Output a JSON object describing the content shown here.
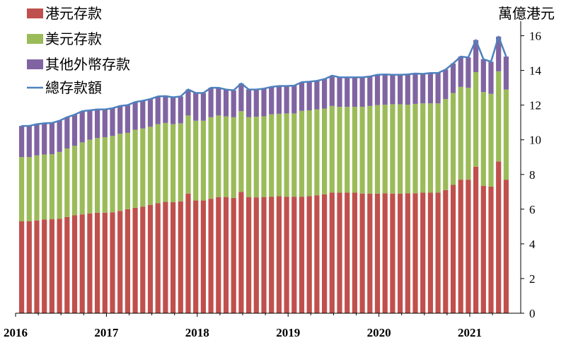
{
  "chart_data": {
    "type": "bar",
    "stacked": true,
    "y_unit_label": "萬億港元",
    "ylim": [
      0,
      17
    ],
    "yticks": [
      0,
      2,
      4,
      6,
      8,
      10,
      12,
      14,
      16
    ],
    "x_tick_labels": [
      "2016",
      "2017",
      "2018",
      "2019",
      "2020",
      "2021"
    ],
    "x_start": "2016-01",
    "x_end": "2021-03",
    "legend_position": "top-left",
    "grid": false,
    "colors": {
      "hkd": "#c0504d",
      "usd": "#9bbb59",
      "other": "#8064a2",
      "total": "#4f81bd"
    },
    "series": [
      {
        "key": "hkd",
        "name": "港元存款",
        "type": "bar",
        "values": [
          5.3,
          5.3,
          5.35,
          5.4,
          5.42,
          5.45,
          5.55,
          5.65,
          5.7,
          5.75,
          5.8,
          5.8,
          5.82,
          5.9,
          6.0,
          6.08,
          6.15,
          6.25,
          6.35,
          6.42,
          6.4,
          6.45,
          6.9,
          6.5,
          6.5,
          6.6,
          6.7,
          6.7,
          6.65,
          7.0,
          6.7,
          6.68,
          6.7,
          6.72,
          6.75,
          6.72,
          6.72,
          6.72,
          6.75,
          6.8,
          6.85,
          6.95,
          6.95,
          6.95,
          6.95,
          6.9,
          6.9,
          6.9,
          6.92,
          6.9,
          6.9,
          6.92,
          6.92,
          6.95,
          6.95,
          6.95,
          7.1,
          7.4,
          7.7,
          7.7,
          8.45,
          7.35,
          7.3,
          8.75,
          7.7
        ]
      },
      {
        "key": "usd",
        "name": "美元存款",
        "type": "bar",
        "values": [
          3.7,
          3.7,
          3.75,
          3.75,
          3.75,
          3.85,
          3.95,
          4.0,
          4.15,
          4.25,
          4.3,
          4.35,
          4.4,
          4.45,
          4.4,
          4.5,
          4.5,
          4.5,
          4.55,
          4.55,
          4.5,
          4.5,
          4.5,
          4.6,
          4.6,
          4.7,
          4.7,
          4.65,
          4.65,
          4.65,
          4.6,
          4.65,
          4.65,
          4.75,
          4.75,
          4.8,
          4.8,
          4.95,
          4.95,
          4.95,
          4.95,
          5.0,
          4.95,
          4.95,
          4.95,
          5.0,
          5.05,
          5.1,
          5.1,
          5.15,
          5.15,
          5.1,
          5.15,
          5.15,
          5.15,
          5.15,
          5.25,
          5.3,
          5.35,
          5.3,
          5.45,
          5.4,
          5.35,
          5.2,
          5.2
        ]
      },
      {
        "key": "other",
        "name": "其他外幣存款",
        "type": "bar",
        "values": [
          1.8,
          1.8,
          1.8,
          1.8,
          1.8,
          1.8,
          1.8,
          1.8,
          1.8,
          1.7,
          1.65,
          1.6,
          1.6,
          1.6,
          1.6,
          1.6,
          1.6,
          1.6,
          1.6,
          1.55,
          1.55,
          1.55,
          1.5,
          1.6,
          1.6,
          1.7,
          1.6,
          1.55,
          1.55,
          1.6,
          1.6,
          1.57,
          1.6,
          1.58,
          1.6,
          1.58,
          1.6,
          1.65,
          1.65,
          1.65,
          1.7,
          1.75,
          1.7,
          1.7,
          1.7,
          1.7,
          1.7,
          1.75,
          1.75,
          1.7,
          1.7,
          1.75,
          1.75,
          1.7,
          1.75,
          1.75,
          1.7,
          1.7,
          1.75,
          1.75,
          1.85,
          1.9,
          1.85,
          2.0,
          1.9
        ]
      },
      {
        "key": "total",
        "name": "總存款額",
        "type": "line",
        "values": [
          10.8,
          10.8,
          10.9,
          10.95,
          10.97,
          11.1,
          11.3,
          11.45,
          11.65,
          11.7,
          11.75,
          11.75,
          11.82,
          11.95,
          12.0,
          12.18,
          12.25,
          12.35,
          12.5,
          12.52,
          12.45,
          12.5,
          12.9,
          12.7,
          12.7,
          13.0,
          13.0,
          12.9,
          12.85,
          13.25,
          12.9,
          12.9,
          12.95,
          13.05,
          13.1,
          13.1,
          13.12,
          13.32,
          13.35,
          13.4,
          13.5,
          13.7,
          13.6,
          13.6,
          13.6,
          13.6,
          13.65,
          13.75,
          13.77,
          13.75,
          13.75,
          13.77,
          13.82,
          13.8,
          13.85,
          13.85,
          14.05,
          14.4,
          14.8,
          14.75,
          15.75,
          14.65,
          14.5,
          15.95,
          14.8
        ]
      }
    ]
  }
}
